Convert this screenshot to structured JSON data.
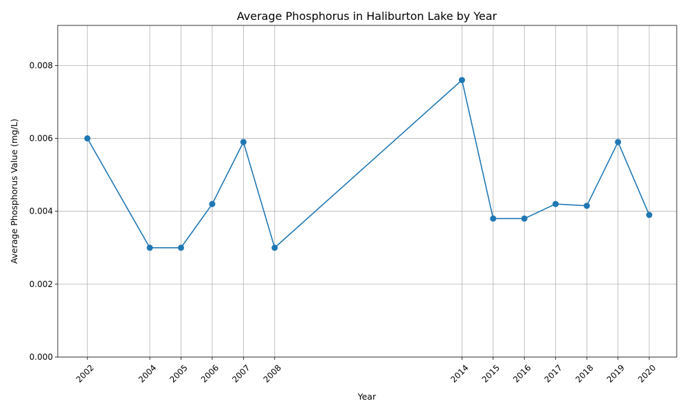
{
  "chart_data": {
    "type": "line",
    "title": "Average Phosphorus in Haliburton Lake by Year",
    "xlabel": "Year",
    "ylabel": "Average Phosphorus Value (mg/L)",
    "x": [
      2002,
      2004,
      2005,
      2006,
      2007,
      2008,
      2014,
      2015,
      2016,
      2017,
      2018,
      2019,
      2020
    ],
    "y": [
      0.006,
      0.003,
      0.003,
      0.0042,
      0.0059,
      0.003,
      0.0076,
      0.0038,
      0.0038,
      0.0042,
      0.00415,
      0.0059,
      0.0039
    ],
    "xticks": [
      "2002",
      "2004",
      "2005",
      "2006",
      "2007",
      "2008",
      "2014",
      "2015",
      "2016",
      "2017",
      "2018",
      "2019",
      "2020"
    ],
    "yticks": [
      "0.000",
      "0.002",
      "0.004",
      "0.006",
      "0.008"
    ],
    "ylim": [
      0,
      0.0091
    ],
    "xlim": [
      2001.05,
      2020.88
    ],
    "grid": true,
    "color": "#1f77b4"
  }
}
